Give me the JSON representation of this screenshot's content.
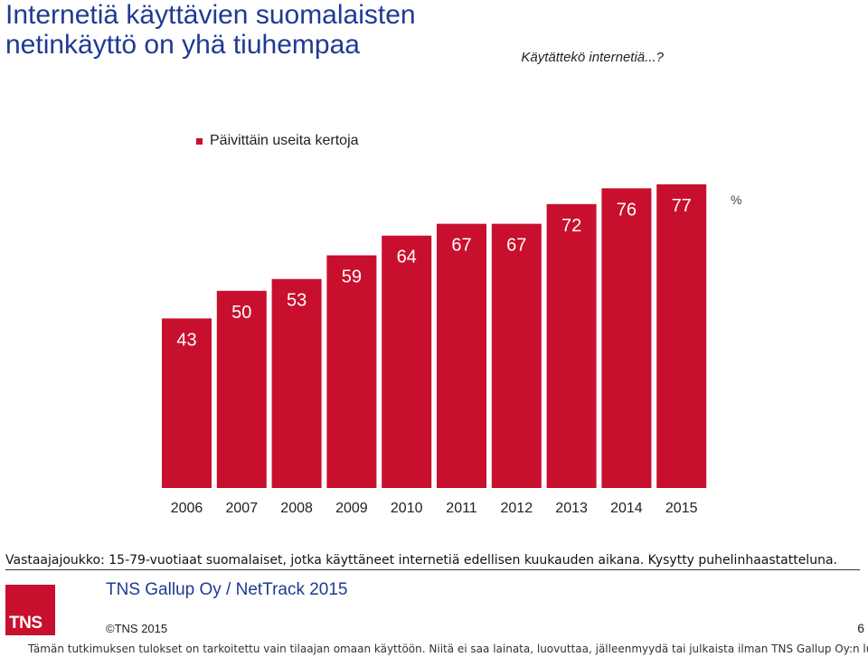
{
  "page": {
    "title": "Internetiä käyttävien suomalaisten netinkäyttö on yhä tiuhempaa",
    "question": "Käytättekö internetiä...?",
    "subtext": "Vastaajajoukko: 15-79-vuotiaat suomalaiset, jotka käyttäneet internetiä edellisen kuukauden aikana. Kysytty puhelinhaastatteluna.",
    "company": "TNS Gallup Oy / NetTrack 2015",
    "logo": "TNS",
    "copyright": "©TNS 2015",
    "page_number": "6",
    "disclaimer": "Tämän tutkimuksen tulokset on tarkoitettu vain tilaajan omaan käyttöön. Niitä ei saa lainata, luovuttaa, jälleenmyydä tai julkaista ilman TNS Gallup Oy:n lupaa"
  },
  "colors": {
    "bar": "#c8102e",
    "title": "#1f3a93",
    "logo": "#c8102e"
  },
  "chart_data": {
    "type": "bar",
    "categories": [
      "2006",
      "2007",
      "2008",
      "2009",
      "2010",
      "2011",
      "2012",
      "2013",
      "2014",
      "2015"
    ],
    "series": [
      {
        "name": "Päivittäin useita kertoja",
        "values": [
          43,
          50,
          53,
          59,
          64,
          67,
          67,
          72,
          76,
          77
        ]
      }
    ],
    "unit_label": "%",
    "ylim": [
      0,
      77
    ],
    "grid": false,
    "legend": "top"
  }
}
